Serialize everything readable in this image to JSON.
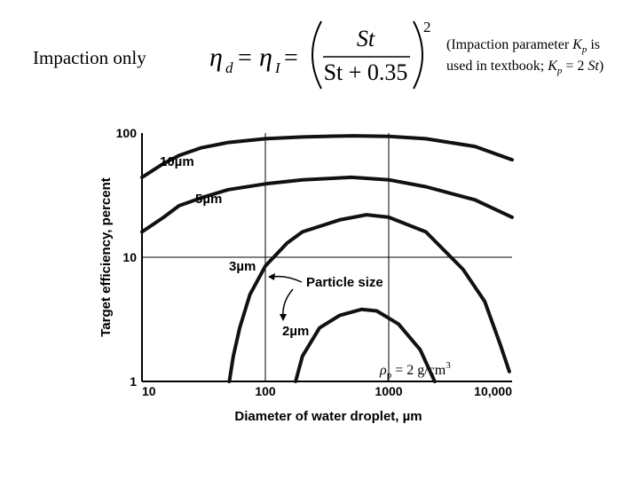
{
  "header": {
    "title": "Impaction only",
    "formula": {
      "eta": "η",
      "sub1": "d",
      "sub2": "I",
      "equals": "=",
      "numerator": "St",
      "denominator": "St + 0.35",
      "exponent": "2"
    },
    "note": [
      "(Impaction parameter ",
      "K",
      "p",
      " is",
      "used in textbook; ",
      "K",
      "p",
      " = 2 ",
      "St",
      ")"
    ]
  },
  "chart_data": {
    "type": "line",
    "x_label": "Diameter of water droplet, µm",
    "y_label": "Target efficiency, percent",
    "xlim": [
      10,
      10000
    ],
    "ylim": [
      1,
      100
    ],
    "xscale": "log",
    "yscale": "log",
    "xticks": [
      10,
      100,
      1000,
      {
        "value": 10000,
        "label": "10,000"
      }
    ],
    "yticks": [
      1,
      10,
      100
    ],
    "grid": true,
    "annotation": "Particle size",
    "density_label": [
      "ρ",
      "p",
      " = 2 g/cm",
      "3"
    ],
    "series": [
      {
        "name": "10µm",
        "color": "#111111",
        "x": [
          10,
          15,
          20,
          30,
          50,
          100,
          200,
          500,
          1000,
          2000,
          5000,
          10000
        ],
        "values": [
          44,
          57,
          66,
          76,
          84,
          90,
          93,
          95,
          94,
          90,
          78,
          61
        ]
      },
      {
        "name": "5µm",
        "color": "#111111",
        "x": [
          10,
          15,
          20,
          30,
          50,
          100,
          200,
          500,
          1000,
          2000,
          5000,
          10000
        ],
        "values": [
          16,
          21,
          26,
          30,
          35,
          39,
          42,
          44,
          42,
          37,
          29,
          21
        ]
      },
      {
        "name": "3µm",
        "color": "#111111",
        "x": [
          51,
          55,
          62,
          75,
          100,
          150,
          200,
          400,
          660,
          1000,
          2000,
          4000,
          6000,
          8000,
          9500
        ],
        "values": [
          1,
          1.6,
          2.7,
          5,
          8.5,
          13,
          16,
          20,
          22,
          21,
          16,
          8,
          4.4,
          2,
          1.2
        ]
      },
      {
        "name": "2µm",
        "color": "#111111",
        "x": [
          176,
          200,
          275,
          400,
          600,
          800,
          1200,
          1800,
          2360
        ],
        "values": [
          1,
          1.6,
          2.7,
          3.4,
          3.8,
          3.7,
          2.9,
          1.8,
          1
        ]
      }
    ]
  }
}
